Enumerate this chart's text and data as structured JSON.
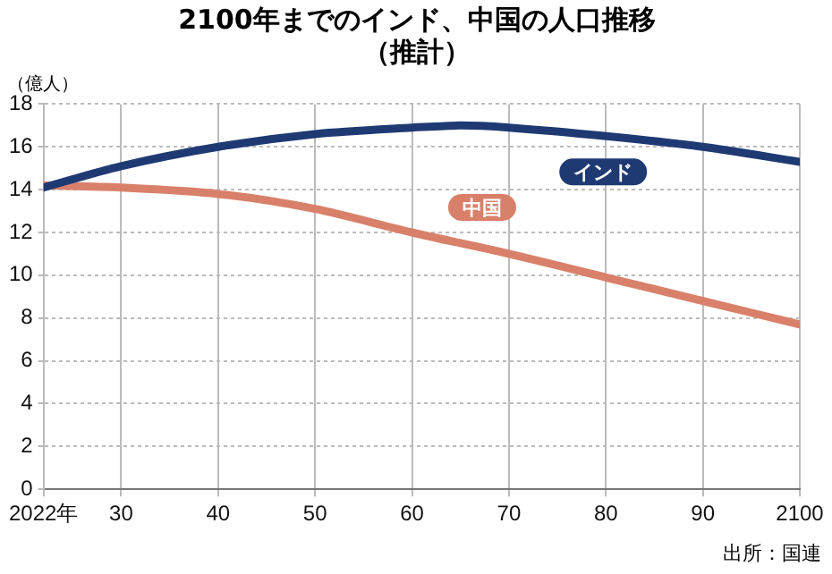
{
  "chart_data": {
    "type": "line",
    "title": "2100年までのインド、中国の人口推移（推計）",
    "ylabel": "（億人）",
    "x": [
      2022,
      2030,
      2040,
      2050,
      2060,
      2065,
      2070,
      2080,
      2090,
      2100
    ],
    "series": [
      {
        "name": "インド",
        "color": "#1f3a73",
        "values": [
          14.1,
          15.1,
          16.0,
          16.6,
          16.9,
          17.0,
          16.9,
          16.5,
          16.0,
          15.3
        ]
      },
      {
        "name": "中国",
        "color": "#d9806a",
        "values": [
          14.2,
          14.1,
          13.8,
          13.1,
          12.0,
          null,
          11.0,
          9.9,
          8.8,
          7.7
        ]
      }
    ],
    "xlim": [
      2022,
      2100
    ],
    "xticks": [
      {
        "value": 2022,
        "label": "2022年"
      },
      {
        "value": 2030,
        "label": "30"
      },
      {
        "value": 2040,
        "label": "40"
      },
      {
        "value": 2050,
        "label": "50"
      },
      {
        "value": 2060,
        "label": "60"
      },
      {
        "value": 2070,
        "label": "70"
      },
      {
        "value": 2080,
        "label": "80"
      },
      {
        "value": 2090,
        "label": "90"
      },
      2100
    ],
    "ylim": [
      0,
      18
    ],
    "yticks": [
      0,
      2,
      4,
      6,
      8,
      10,
      12,
      14,
      16,
      18
    ],
    "grid": true,
    "legend": false,
    "marker": "none",
    "line_style": "solid",
    "annotations": [
      "出所：国連"
    ]
  }
}
